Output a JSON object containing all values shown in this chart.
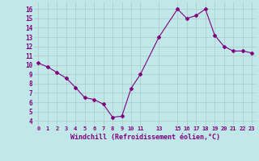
{
  "x": [
    0,
    1,
    2,
    3,
    4,
    5,
    6,
    7,
    8,
    9,
    10,
    11,
    13,
    15,
    16,
    17,
    18,
    19,
    20,
    21,
    22,
    23
  ],
  "y": [
    10.2,
    9.8,
    9.2,
    8.6,
    7.6,
    6.5,
    6.3,
    5.8,
    4.4,
    4.5,
    7.5,
    9.0,
    13.0,
    16.0,
    15.0,
    15.3,
    16.0,
    13.2,
    12.0,
    11.5,
    11.5,
    11.3
  ],
  "line_color": "#800080",
  "marker": "D",
  "marker_size": 2.0,
  "bg_color": "#c0e8e8",
  "grid_color": "#b0c8c8",
  "xlabel": "Windchill (Refroidissement éolien,°C)",
  "xlabel_color": "#800080",
  "tick_color": "#800080",
  "xticks": [
    0,
    1,
    2,
    3,
    4,
    5,
    6,
    7,
    8,
    9,
    10,
    11,
    13,
    15,
    16,
    17,
    18,
    19,
    20,
    21,
    22,
    23
  ],
  "xtick_labels": [
    "0",
    "1",
    "2",
    "3",
    "4",
    "5",
    "6",
    "7",
    "8",
    "9",
    "10",
    "11",
    "13",
    "15",
    "16",
    "17",
    "18",
    "19",
    "20",
    "21",
    "22",
    "23"
  ],
  "yticks": [
    4,
    5,
    6,
    7,
    8,
    9,
    10,
    11,
    12,
    13,
    14,
    15,
    16
  ],
  "ylim": [
    3.5,
    16.8
  ],
  "xlim": [
    -0.5,
    23.5
  ]
}
